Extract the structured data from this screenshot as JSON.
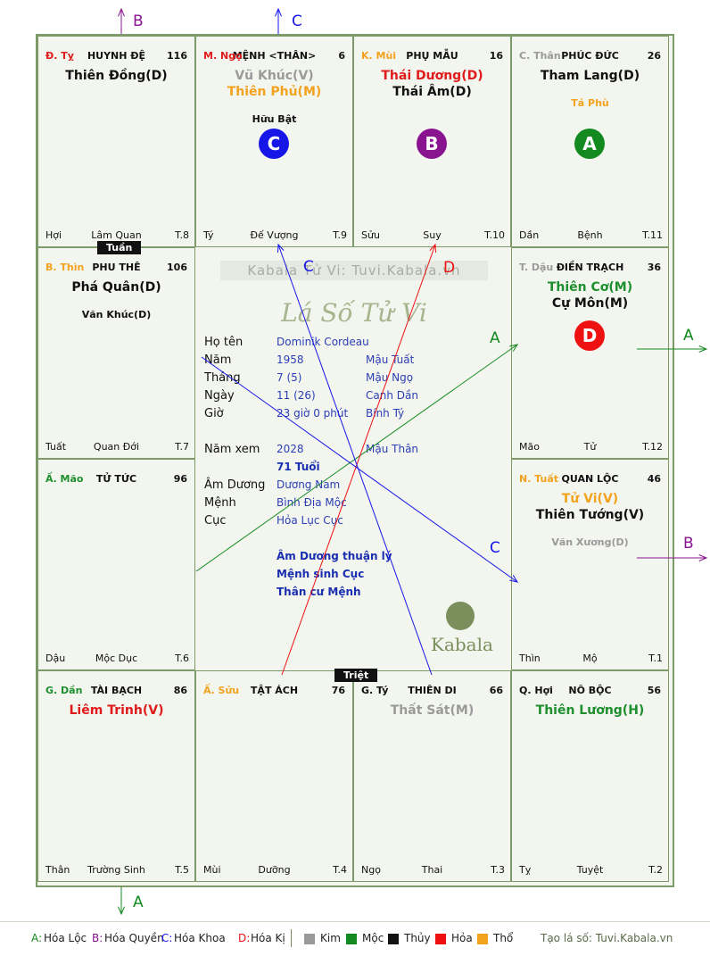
{
  "palaces": [
    {
      "id": "ty",
      "can": "Đ. Tỵ",
      "can_color": "#e01b1b",
      "name": "HUYNH ĐỆ",
      "num": "116",
      "stars": [
        {
          "t": "Thiên Đồng(D)",
          "c": "#111111"
        }
      ],
      "minors": [],
      "foot": [
        "Hợi",
        "Lâm Quan",
        "T.8"
      ]
    },
    {
      "id": "ngo",
      "can": "M. Ngọ",
      "can_color": "#e01b1b",
      "name": "MỆNH <THÂN>",
      "num": "6",
      "stars": [
        {
          "t": "Vũ Khúc(V)",
          "c": "#9a9a9a"
        },
        {
          "t": "Thiên Phủ(M)",
          "c": "#f3a21d"
        }
      ],
      "minors": [
        {
          "t": "Hữu Bật",
          "c": "#111111"
        }
      ],
      "foot": [
        "Tý",
        "Đế Vượng",
        "T.9"
      ]
    },
    {
      "id": "mui",
      "can": "K. Mùi",
      "can_color": "#f3a21d",
      "name": "PHỤ MẪU",
      "num": "16",
      "stars": [
        {
          "t": "Thái Dương(D)",
          "c": "#e01b1b"
        },
        {
          "t": "Thái Âm(D)",
          "c": "#111111"
        }
      ],
      "minors": [],
      "foot": [
        "Sửu",
        "Suy",
        "T.10"
      ]
    },
    {
      "id": "than",
      "can": "C. Thân",
      "can_color": "#9a9a9a",
      "name": "PHÚC ĐỨC",
      "num": "26",
      "stars": [
        {
          "t": "Tham Lang(D)",
          "c": "#111111"
        }
      ],
      "minors": [
        {
          "t": "Tả Phù",
          "c": "#f3a21d"
        }
      ],
      "foot": [
        "Dần",
        "Bệnh",
        "T.11"
      ]
    },
    {
      "id": "thin",
      "can": "B. Thìn",
      "can_color": "#f3a21d",
      "name": "PHU THÊ",
      "num": "106",
      "stars": [
        {
          "t": "Phá Quân(D)",
          "c": "#111111"
        }
      ],
      "minors": [
        {
          "t": "Văn Khúc(D)",
          "c": "#111111"
        }
      ],
      "foot": [
        "Tuất",
        "Quan Đới",
        "T.7"
      ]
    },
    {
      "id": "dau",
      "can": "T. Dậu",
      "can_color": "#9a9a9a",
      "name": "ĐIỀN TRẠCH",
      "num": "36",
      "stars": [
        {
          "t": "Thiên Cơ(M)",
          "c": "#1e8f2e"
        },
        {
          "t": "Cự Môn(M)",
          "c": "#111111"
        }
      ],
      "minors": [],
      "foot": [
        "Mão",
        "Tử",
        "T.12"
      ]
    },
    {
      "id": "mao",
      "can": "Ấ. Mão",
      "can_color": "#1e8f2e",
      "name": "TỬ TỨC",
      "num": "96",
      "stars": [],
      "minors": [],
      "foot": [
        "Dậu",
        "Mộc Dục",
        "T.6"
      ]
    },
    {
      "id": "tuat",
      "can": "N. Tuất",
      "can_color": "#f3a21d",
      "name": "QUAN LỘC",
      "num": "46",
      "stars": [
        {
          "t": "Tử Vi(V)",
          "c": "#f3a21d"
        },
        {
          "t": "Thiên Tướng(V)",
          "c": "#111111"
        }
      ],
      "minors": [
        {
          "t": "Văn Xương(D)",
          "c": "#9a9a9a"
        }
      ],
      "foot": [
        "Thìn",
        "Mộ",
        "T.1"
      ]
    },
    {
      "id": "dan",
      "can": "G. Dần",
      "can_color": "#1e8f2e",
      "name": "TÀI BẠCH",
      "num": "86",
      "stars": [
        {
          "t": "Liêm Trinh(V)",
          "c": "#e01b1b"
        }
      ],
      "minors": [],
      "foot": [
        "Thân",
        "Trường Sinh",
        "T.5"
      ]
    },
    {
      "id": "suu",
      "can": "Ấ. Sửu",
      "can_color": "#f3a21d",
      "name": "TẬT ÁCH",
      "num": "76",
      "stars": [],
      "minors": [],
      "foot": [
        "Mùi",
        "Dưỡng",
        "T.4"
      ]
    },
    {
      "id": "tyy",
      "can": "G. Tý",
      "can_color": "#111111",
      "name": "THIÊN DI",
      "num": "66",
      "stars": [
        {
          "t": "Thất Sát(M)",
          "c": "#9a9a9a"
        }
      ],
      "minors": [],
      "foot": [
        "Ngọ",
        "Thai",
        "T.3"
      ]
    },
    {
      "id": "hoi",
      "can": "Q. Hợi",
      "can_color": "#111111",
      "name": "NÔ BỘC",
      "num": "56",
      "stars": [
        {
          "t": "Thiên Lương(H)",
          "c": "#1e8f2e"
        }
      ],
      "minors": [],
      "foot": [
        "Tỵ",
        "Tuyệt",
        "T.2"
      ]
    }
  ],
  "circles": [
    {
      "palace": "ngo",
      "letter": "C",
      "color": "#1616e8"
    },
    {
      "palace": "mui",
      "letter": "B",
      "color": "#8a1490"
    },
    {
      "palace": "than",
      "letter": "A",
      "color": "#138a1f"
    },
    {
      "palace": "dau",
      "letter": "D",
      "color": "#ee1111"
    }
  ],
  "tags": {
    "tuan": "Tuần",
    "triet": "Triệt"
  },
  "center": {
    "watermark": "Kabala Tử Vi: Tuvi.Kabala.vn",
    "title": "Lá Số Tử Vi",
    "rows": [
      {
        "k": "Họ tên",
        "v": "Dominik Cordeau",
        "w": ""
      },
      {
        "k": "Năm",
        "v": "1958",
        "w": "Mậu Tuất"
      },
      {
        "k": "Tháng",
        "v": "7  (5)",
        "w": "Mậu Ngọ"
      },
      {
        "k": "Ngày",
        "v": "11  (26)",
        "w": "Canh Dần"
      },
      {
        "k": "Giờ",
        "v": "23 giờ 0 phút",
        "w": "Bính Tý"
      }
    ],
    "year_row": {
      "k": "Năm xem",
      "v": "2028",
      "w": "Mậu Thân"
    },
    "age": "71 Tuổi",
    "rows2": [
      {
        "k": "Âm Dương",
        "v": "Dương Nam"
      },
      {
        "k": "Mệnh",
        "v": "Bình Địa Mộc"
      },
      {
        "k": "Cục",
        "v": "Hỏa Lục Cục"
      }
    ],
    "notes": [
      "Âm Dương thuận lý",
      "Mệnh sinh Cục",
      "Thân cư Mệnh"
    ],
    "brand": "Kabala"
  },
  "arrow_labels": {
    "a": "A",
    "b": "B",
    "c": "C",
    "d": "D"
  },
  "legend": {
    "items": [
      {
        "key": "A:",
        "label": "Hóa Lộc",
        "color": "#138a1f"
      },
      {
        "key": "B:",
        "label": "Hóa Quyền",
        "color": "#8a1490"
      },
      {
        "key": "C:",
        "label": "Hóa Khoa",
        "color": "#1616e8"
      },
      {
        "key": "D:",
        "label": "Hóa Kị",
        "color": "#ee1111"
      }
    ],
    "elements": [
      {
        "label": "Kim",
        "color": "#9a9a9a"
      },
      {
        "label": "Mộc",
        "color": "#138a1f"
      },
      {
        "label": "Thủy",
        "color": "#111111"
      },
      {
        "label": "Hỏa",
        "color": "#ee1111"
      },
      {
        "label": "Thổ",
        "color": "#f3a21d"
      }
    ],
    "credit": "Tạo lá số: Tuvi.Kabala.vn"
  }
}
